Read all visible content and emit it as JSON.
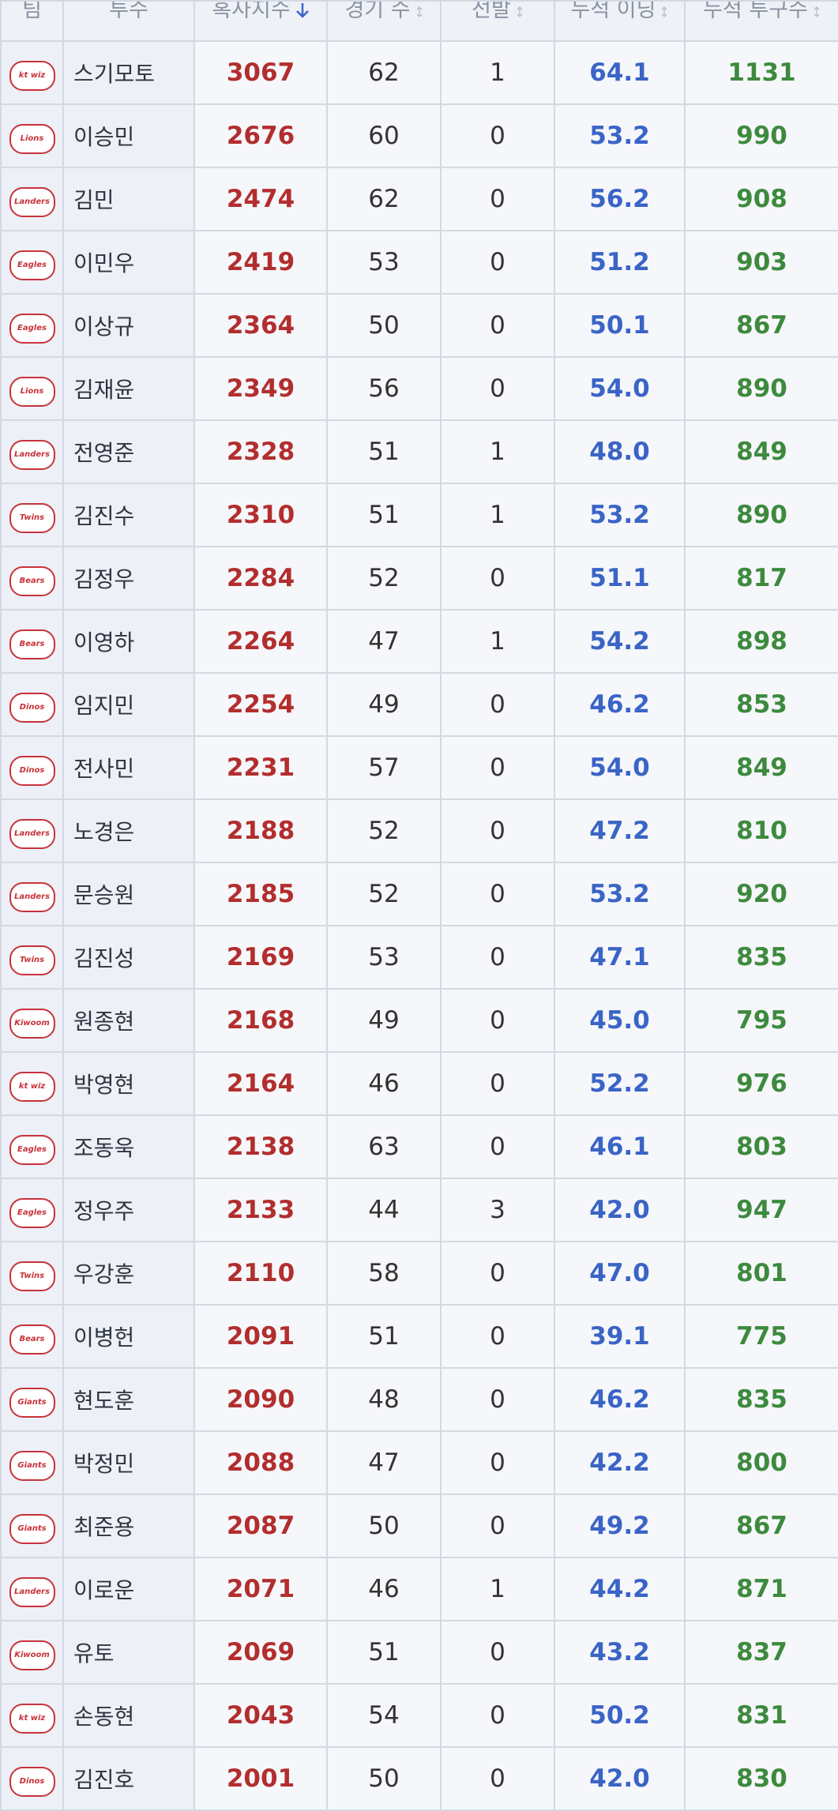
{
  "table": {
    "columns": [
      "팀",
      "투수",
      "혹사지수",
      "경기 수",
      "선발",
      "누적 이닝",
      "누적 투구수"
    ],
    "rows": [
      [
        "kt wiz",
        "스기모토",
        3067,
        62,
        1,
        "64.1",
        1131
      ],
      [
        "Lions",
        "이승민",
        2676,
        60,
        0,
        "53.2",
        990
      ],
      [
        "Landers",
        "김민",
        2474,
        62,
        0,
        "56.2",
        908
      ],
      [
        "Eagles",
        "이민우",
        2419,
        53,
        0,
        "51.2",
        903
      ],
      [
        "Eagles",
        "이상규",
        2364,
        50,
        0,
        "50.1",
        867
      ],
      [
        "Lions",
        "김재윤",
        2349,
        56,
        0,
        "54.0",
        890
      ],
      [
        "Landers",
        "전영준",
        2328,
        51,
        1,
        "48.0",
        849
      ],
      [
        "Twins",
        "김진수",
        2310,
        51,
        1,
        "53.2",
        890
      ],
      [
        "Bears",
        "김정우",
        2284,
        52,
        0,
        "51.1",
        817
      ],
      [
        "Bears",
        "이영하",
        2264,
        47,
        1,
        "54.2",
        898
      ],
      [
        "Dinos",
        "임지민",
        2254,
        49,
        0,
        "46.2",
        853
      ],
      [
        "Dinos",
        "전사민",
        2231,
        57,
        0,
        "54.0",
        849
      ],
      [
        "Landers",
        "노경은",
        2188,
        52,
        0,
        "47.2",
        810
      ],
      [
        "Landers",
        "문승원",
        2185,
        52,
        0,
        "53.2",
        920
      ],
      [
        "Twins",
        "김진성",
        2169,
        53,
        0,
        "47.1",
        835
      ],
      [
        "Kiwoom",
        "원종현",
        2168,
        49,
        0,
        "45.0",
        795
      ],
      [
        "kt wiz",
        "박영현",
        2164,
        46,
        0,
        "52.2",
        976
      ],
      [
        "Eagles",
        "조동욱",
        2138,
        63,
        0,
        "46.1",
        803
      ],
      [
        "Eagles",
        "정우주",
        2133,
        44,
        3,
        "42.0",
        947
      ],
      [
        "Twins",
        "우강훈",
        2110,
        58,
        0,
        "47.0",
        801
      ],
      [
        "Bears",
        "이병헌",
        2091,
        51,
        0,
        "39.1",
        775
      ],
      [
        "Giants",
        "현도훈",
        2090,
        48,
        0,
        "46.2",
        835
      ],
      [
        "Giants",
        "박정민",
        2088,
        47,
        0,
        "42.2",
        800
      ],
      [
        "Giants",
        "최준용",
        2087,
        50,
        0,
        "49.2",
        867
      ],
      [
        "Landers",
        "이로운",
        2071,
        46,
        1,
        "44.2",
        871
      ],
      [
        "Kiwoom",
        "유토",
        2069,
        51,
        0,
        "43.2",
        837
      ],
      [
        "kt wiz",
        "손동현",
        2043,
        54,
        0,
        "50.2",
        831
      ],
      [
        "Dinos",
        "김진호",
        2001,
        50,
        0,
        "42.0",
        830
      ]
    ]
  }
}
